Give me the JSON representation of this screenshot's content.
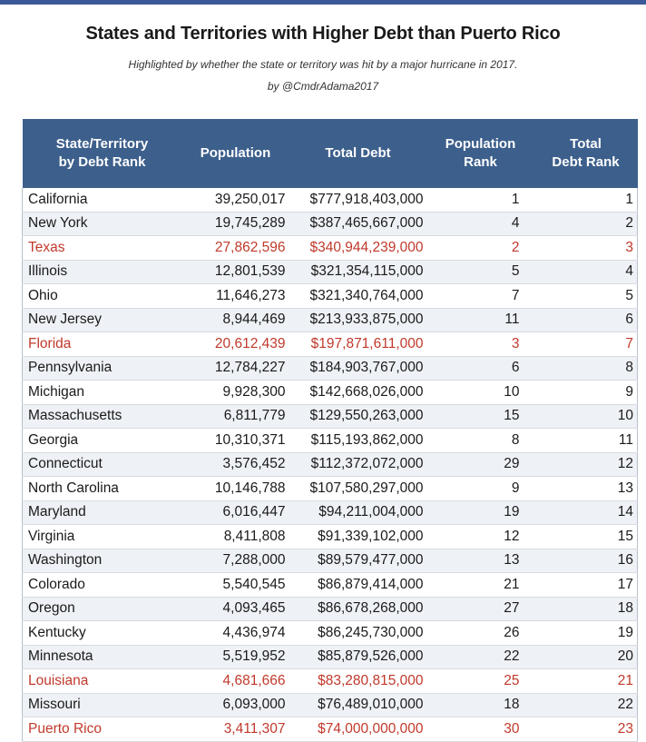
{
  "header": {
    "title": "States and Territories with Higher Debt than Puerto Rico",
    "subtitle": "Highlighted by whether the state or territory was hit by a major hurricane in 2017.",
    "byline": "by @CmdrAdama2017"
  },
  "colors": {
    "header_bg": "#3d5f8c",
    "hurricane_text": "#c0392b",
    "stripe": "#eef1f5"
  },
  "table": {
    "columns": [
      {
        "line1": "State/Territory",
        "line2": "by Debt Rank"
      },
      {
        "line1": "Population",
        "line2": ""
      },
      {
        "line1": "Total Debt",
        "line2": ""
      },
      {
        "line1": "Population",
        "line2": "Rank"
      },
      {
        "line1": "Total",
        "line2": "Debt Rank"
      }
    ],
    "rows": [
      {
        "name": "California",
        "population": "39,250,017",
        "debt": "$777,918,403,000",
        "pop_rank": "1",
        "debt_rank": "1",
        "hurricane": false
      },
      {
        "name": "New York",
        "population": "19,745,289",
        "debt": "$387,465,667,000",
        "pop_rank": "4",
        "debt_rank": "2",
        "hurricane": false
      },
      {
        "name": "Texas",
        "population": "27,862,596",
        "debt": "$340,944,239,000",
        "pop_rank": "2",
        "debt_rank": "3",
        "hurricane": true
      },
      {
        "name": "Illinois",
        "population": "12,801,539",
        "debt": "$321,354,115,000",
        "pop_rank": "5",
        "debt_rank": "4",
        "hurricane": false
      },
      {
        "name": "Ohio",
        "population": "11,646,273",
        "debt": "$321,340,764,000",
        "pop_rank": "7",
        "debt_rank": "5",
        "hurricane": false
      },
      {
        "name": "New Jersey",
        "population": "8,944,469",
        "debt": "$213,933,875,000",
        "pop_rank": "11",
        "debt_rank": "6",
        "hurricane": false
      },
      {
        "name": "Florida",
        "population": "20,612,439",
        "debt": "$197,871,611,000",
        "pop_rank": "3",
        "debt_rank": "7",
        "hurricane": true
      },
      {
        "name": "Pennsylvania",
        "population": "12,784,227",
        "debt": "$184,903,767,000",
        "pop_rank": "6",
        "debt_rank": "8",
        "hurricane": false
      },
      {
        "name": "Michigan",
        "population": "9,928,300",
        "debt": "$142,668,026,000",
        "pop_rank": "10",
        "debt_rank": "9",
        "hurricane": false
      },
      {
        "name": "Massachusetts",
        "population": "6,811,779",
        "debt": "$129,550,263,000",
        "pop_rank": "15",
        "debt_rank": "10",
        "hurricane": false
      },
      {
        "name": "Georgia",
        "population": "10,310,371",
        "debt": "$115,193,862,000",
        "pop_rank": "8",
        "debt_rank": "11",
        "hurricane": false
      },
      {
        "name": "Connecticut",
        "population": "3,576,452",
        "debt": "$112,372,072,000",
        "pop_rank": "29",
        "debt_rank": "12",
        "hurricane": false
      },
      {
        "name": "North Carolina",
        "population": "10,146,788",
        "debt": "$107,580,297,000",
        "pop_rank": "9",
        "debt_rank": "13",
        "hurricane": false
      },
      {
        "name": "Maryland",
        "population": "6,016,447",
        "debt": "$94,211,004,000",
        "pop_rank": "19",
        "debt_rank": "14",
        "hurricane": false
      },
      {
        "name": "Virginia",
        "population": "8,411,808",
        "debt": "$91,339,102,000",
        "pop_rank": "12",
        "debt_rank": "15",
        "hurricane": false
      },
      {
        "name": "Washington",
        "population": "7,288,000",
        "debt": "$89,579,477,000",
        "pop_rank": "13",
        "debt_rank": "16",
        "hurricane": false
      },
      {
        "name": "Colorado",
        "population": "5,540,545",
        "debt": "$86,879,414,000",
        "pop_rank": "21",
        "debt_rank": "17",
        "hurricane": false
      },
      {
        "name": "Oregon",
        "population": "4,093,465",
        "debt": "$86,678,268,000",
        "pop_rank": "27",
        "debt_rank": "18",
        "hurricane": false
      },
      {
        "name": "Kentucky",
        "population": "4,436,974",
        "debt": "$86,245,730,000",
        "pop_rank": "26",
        "debt_rank": "19",
        "hurricane": false
      },
      {
        "name": "Minnesota",
        "population": "5,519,952",
        "debt": "$85,879,526,000",
        "pop_rank": "22",
        "debt_rank": "20",
        "hurricane": false
      },
      {
        "name": "Louisiana",
        "population": "4,681,666",
        "debt": "$83,280,815,000",
        "pop_rank": "25",
        "debt_rank": "21",
        "hurricane": true
      },
      {
        "name": "Missouri",
        "population": "6,093,000",
        "debt": "$76,489,010,000",
        "pop_rank": "18",
        "debt_rank": "22",
        "hurricane": false
      },
      {
        "name": "Puerto Rico",
        "population": "3,411,307",
        "debt": "$74,000,000,000",
        "pop_rank": "30",
        "debt_rank": "23",
        "hurricane": true
      }
    ]
  }
}
